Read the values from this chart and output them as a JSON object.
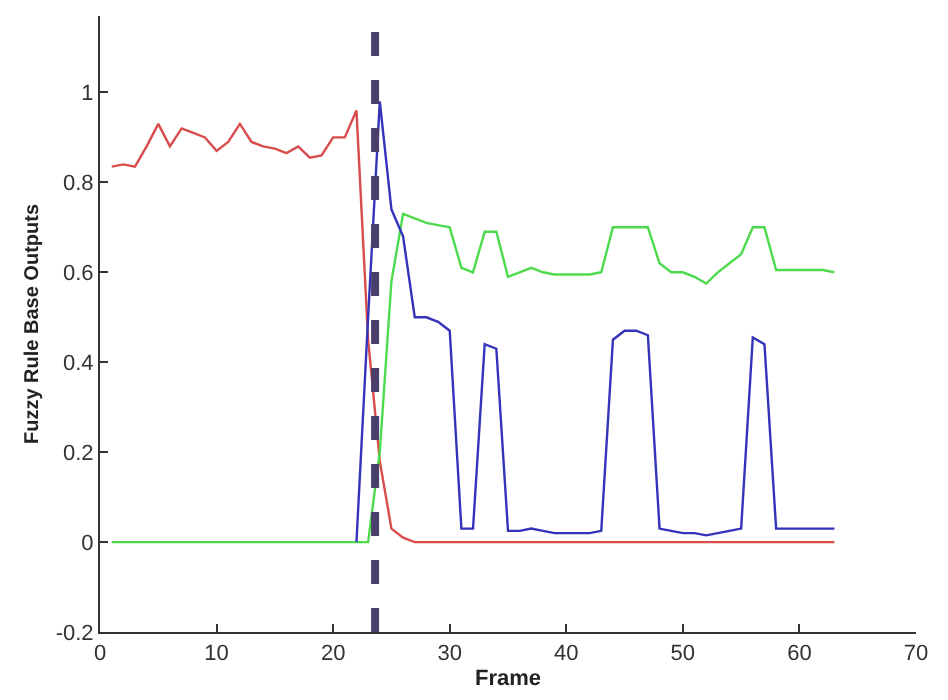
{
  "chart_data": {
    "type": "line",
    "xlabel": "Frame",
    "ylabel": "Fuzzy Rule Base Outputs",
    "x": [
      1,
      2,
      3,
      4,
      5,
      6,
      7,
      8,
      9,
      10,
      11,
      12,
      13,
      14,
      15,
      16,
      17,
      18,
      19,
      20,
      21,
      22,
      23,
      24,
      25,
      26,
      27,
      28,
      29,
      30,
      31,
      32,
      33,
      34,
      35,
      36,
      37,
      38,
      39,
      40,
      41,
      42,
      43,
      44,
      45,
      46,
      47,
      48,
      49,
      50,
      51,
      52,
      53,
      54,
      55,
      56,
      57,
      58,
      59,
      60,
      61,
      62,
      63
    ],
    "series": [
      {
        "color": "#d94c4c",
        "values": [
          0.835,
          0.84,
          0.835,
          0.88,
          0.93,
          0.88,
          0.92,
          0.91,
          0.9,
          0.87,
          0.89,
          0.93,
          0.89,
          0.88,
          0.875,
          0.865,
          0.88,
          0.855,
          0.86,
          0.9,
          0.9,
          0.96,
          0.45,
          0.18,
          0.03,
          0.01,
          0,
          0,
          0,
          0,
          0,
          0,
          0,
          0,
          0,
          0,
          0,
          0,
          0,
          0,
          0,
          0,
          0,
          0,
          0,
          0,
          0,
          0,
          0,
          0,
          0,
          0,
          0,
          0,
          0,
          0,
          0,
          0,
          0,
          0,
          0,
          0,
          0
        ]
      },
      {
        "color": "#4ddb4d",
        "values": [
          0,
          0,
          0,
          0,
          0,
          0,
          0,
          0,
          0,
          0,
          0,
          0,
          0,
          0,
          0,
          0,
          0,
          0,
          0,
          0,
          0,
          0,
          0,
          0.2,
          0.58,
          0.73,
          0.72,
          0.71,
          0.705,
          0.7,
          0.61,
          0.6,
          0.69,
          0.69,
          0.59,
          0.6,
          0.61,
          0.6,
          0.595,
          0.595,
          0.595,
          0.595,
          0.6,
          0.7,
          0.7,
          0.7,
          0.7,
          0.62,
          0.6,
          0.6,
          0.59,
          0.575,
          0.6,
          0.62,
          0.64,
          0.7,
          0.7,
          0.605,
          0.605,
          0.605,
          0.605,
          0.605,
          0.6
        ]
      },
      {
        "color": "#3333bb",
        "values": [
          null,
          null,
          null,
          null,
          null,
          null,
          null,
          null,
          null,
          null,
          null,
          null,
          null,
          null,
          null,
          null,
          null,
          null,
          null,
          null,
          null,
          0,
          0.5,
          0.98,
          0.74,
          0.68,
          0.5,
          0.5,
          0.49,
          0.47,
          0.03,
          0.03,
          0.44,
          0.43,
          0.025,
          0.025,
          0.03,
          0.025,
          0.02,
          0.02,
          0.02,
          0.02,
          0.025,
          0.45,
          0.47,
          0.47,
          0.46,
          0.03,
          0.025,
          0.02,
          0.02,
          0.015,
          0.02,
          0.025,
          0.03,
          0.455,
          0.44,
          0.03,
          0.03,
          0.03,
          0.03,
          0.03,
          0.03
        ]
      }
    ],
    "ref_lines": [
      {
        "axis": "x",
        "value": 23.6,
        "color": "#4a3f6b",
        "line_style": "dashed"
      }
    ],
    "xlim": [
      0,
      70
    ],
    "xticks": [
      0,
      10,
      20,
      30,
      40,
      50,
      60,
      70
    ],
    "ylim": [
      -0.2,
      1.17
    ],
    "yticks": [
      -0.2,
      0,
      0.2,
      0.4,
      0.6,
      0.8,
      1
    ],
    "marker": "none",
    "line_style": "solid"
  }
}
